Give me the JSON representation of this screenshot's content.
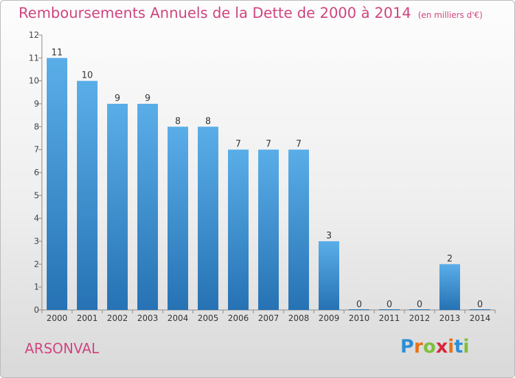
{
  "page": {
    "title": "Remboursements Annuels de la Dette de 2000 à 2014",
    "unit": "(en milliers d'€)",
    "commune": "ARSONVAL",
    "logo": {
      "letters": [
        "P",
        "r",
        "o",
        "x",
        "i",
        "t",
        "i"
      ],
      "colors": [
        "#2b8fd6",
        "#e8731a",
        "#7fbf3b",
        "#d7263d",
        "#e8731a",
        "#2b8fd6",
        "#7fbf3b"
      ]
    }
  },
  "chart_data": {
    "type": "bar",
    "title": "Remboursements Annuels de la Dette de 2000 à 2014",
    "subtitle": "(en milliers d'€)",
    "categories": [
      "2000",
      "2001",
      "2002",
      "2003",
      "2004",
      "2005",
      "2006",
      "2007",
      "2008",
      "2009",
      "2010",
      "2011",
      "2012",
      "2013",
      "2014"
    ],
    "values": [
      11,
      10,
      9,
      9,
      8,
      8,
      7,
      7,
      7,
      3,
      0,
      0,
      0,
      2,
      0
    ],
    "ylim": [
      0,
      12
    ],
    "yticks": [
      0,
      1,
      2,
      3,
      4,
      5,
      6,
      7,
      8,
      9,
      10,
      11,
      12
    ],
    "grid": false,
    "bar_color_top": "#5aaee8",
    "bar_color_bottom": "#2672b4",
    "data_labels": true
  }
}
